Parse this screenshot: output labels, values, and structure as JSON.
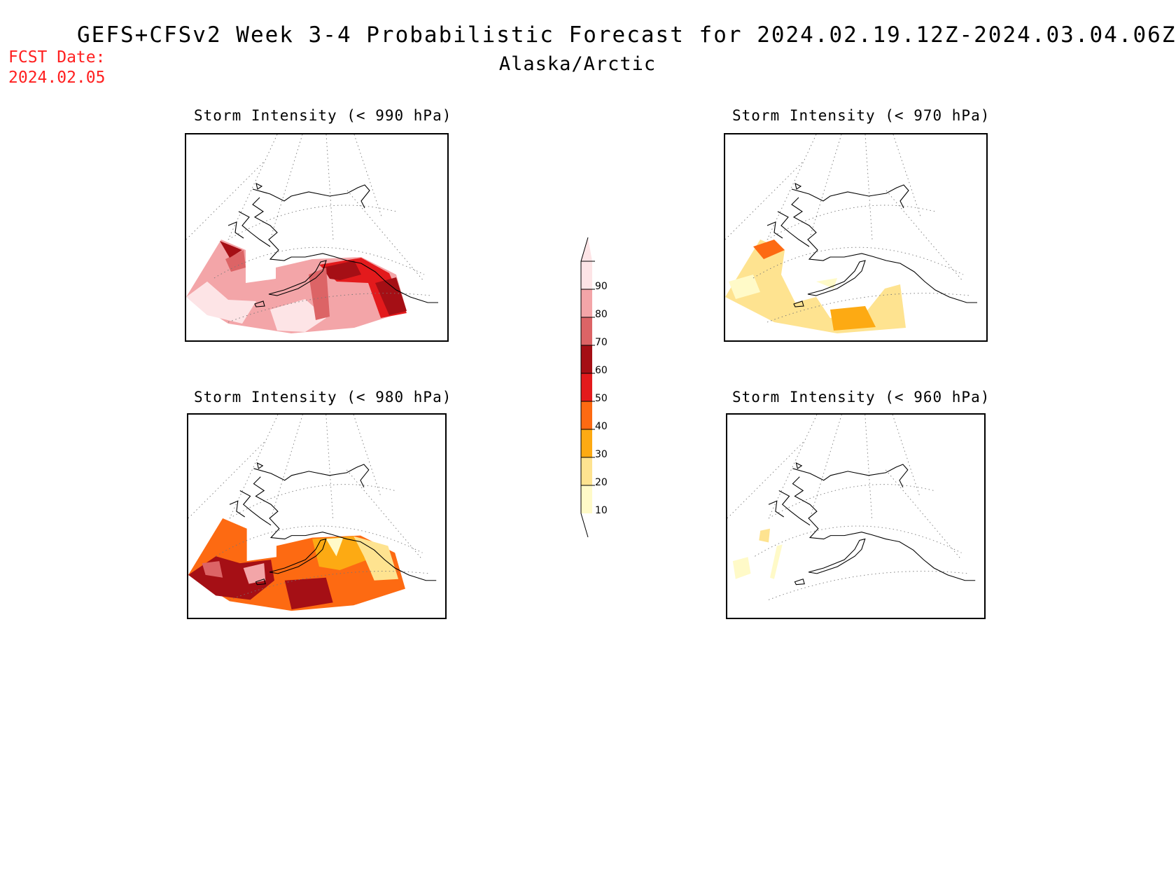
{
  "header": {
    "title": "GEFS+CFSv2 Week 3-4 Probabilistic Forecast for 2024.02.19.12Z-2024.03.04.06Z",
    "subtitle": "Alaska/Arctic",
    "fcst_label": "FCST Date:",
    "fcst_date": "2024.02.05"
  },
  "panels": [
    {
      "title": "Storm Intensity (< 990 hPa)",
      "threshold": "990",
      "level": "high"
    },
    {
      "title": "Storm Intensity (< 970 hPa)",
      "threshold": "970",
      "level": "low"
    },
    {
      "title": "Storm Intensity (< 980 hPa)",
      "threshold": "980",
      "level": "mid"
    },
    {
      "title": "Storm Intensity (< 960 hPa)",
      "threshold": "960",
      "level": "verylow"
    }
  ],
  "colorbar": {
    "labels": [
      "90",
      "80",
      "70",
      "60",
      "50",
      "40",
      "30",
      "20",
      "10"
    ],
    "colors": [
      "#fde4e6",
      "#f3a5a8",
      "#dc6466",
      "#a50f15",
      "#e31a1c",
      "#fd6a12",
      "#fdaa13",
      "#fee390",
      "#fffac8"
    ]
  }
}
